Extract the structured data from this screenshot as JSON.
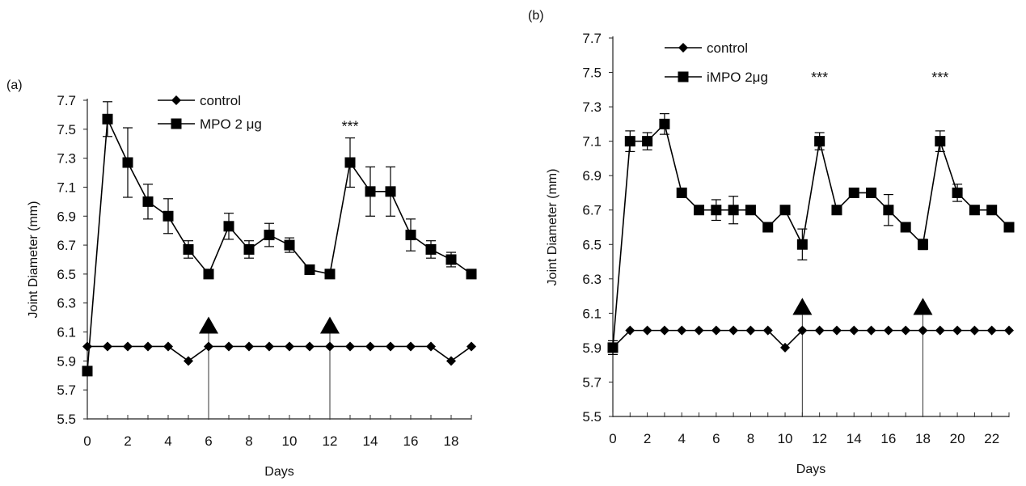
{
  "chart_data": [
    {
      "type": "line",
      "panel_label": "(a)",
      "xlabel": "Days",
      "ylabel": "Joint Diameter (mm)",
      "xlim": [
        0,
        19
      ],
      "ylim": [
        5.5,
        7.7
      ],
      "xticks": [
        0,
        2,
        4,
        6,
        8,
        10,
        12,
        14,
        16,
        18
      ],
      "yticks": [
        5.5,
        5.7,
        5.9,
        6.1,
        6.3,
        6.5,
        6.7,
        6.9,
        7.1,
        7.3,
        7.5,
        7.7
      ],
      "series": [
        {
          "name": "control",
          "marker": "diamond",
          "x": [
            0,
            1,
            2,
            3,
            4,
            5,
            6,
            7,
            8,
            9,
            10,
            11,
            12,
            13,
            14,
            15,
            16,
            17,
            18,
            19
          ],
          "y": [
            6.0,
            6.0,
            6.0,
            6.0,
            6.0,
            5.9,
            6.0,
            6.0,
            6.0,
            6.0,
            6.0,
            6.0,
            6.0,
            6.0,
            6.0,
            6.0,
            6.0,
            6.0,
            5.9,
            6.0
          ]
        },
        {
          "name": "MPO 2 μg",
          "marker": "square",
          "x": [
            0,
            1,
            2,
            3,
            4,
            5,
            6,
            7,
            8,
            9,
            10,
            11,
            12,
            13,
            14,
            15,
            16,
            17,
            18,
            19
          ],
          "y": [
            5.83,
            7.57,
            7.27,
            7.0,
            6.9,
            6.67,
            6.5,
            6.83,
            6.67,
            6.77,
            6.7,
            6.53,
            6.5,
            7.27,
            7.07,
            7.07,
            6.77,
            6.67,
            6.6,
            6.5
          ],
          "err": [
            0,
            0.12,
            0.24,
            0.12,
            0.12,
            0.06,
            0,
            0.09,
            0.06,
            0.08,
            0.05,
            0,
            0,
            0.17,
            0.17,
            0.17,
            0.11,
            0.06,
            0.05,
            0
          ]
        }
      ],
      "annotations": [
        {
          "x": 13,
          "y": 7.53,
          "text": "***"
        }
      ],
      "injection_days": [
        6,
        12
      ],
      "legend": "top-center"
    },
    {
      "type": "line",
      "panel_label": "(b)",
      "xlabel": "Days",
      "ylabel": "Joint Diameter (mm)",
      "xlim": [
        0,
        23
      ],
      "ylim": [
        5.5,
        7.7
      ],
      "xticks": [
        0,
        2,
        4,
        6,
        8,
        10,
        12,
        14,
        16,
        18,
        20,
        22
      ],
      "yticks": [
        5.5,
        5.7,
        5.9,
        6.1,
        6.3,
        6.5,
        6.7,
        6.9,
        7.1,
        7.3,
        7.5,
        7.7
      ],
      "series": [
        {
          "name": "control",
          "marker": "diamond",
          "x": [
            0,
            1,
            2,
            3,
            4,
            5,
            6,
            7,
            8,
            9,
            10,
            11,
            12,
            13,
            14,
            15,
            16,
            17,
            18,
            19,
            20,
            21,
            22,
            23
          ],
          "y": [
            5.9,
            6.0,
            6.0,
            6.0,
            6.0,
            6.0,
            6.0,
            6.0,
            6.0,
            6.0,
            5.9,
            6.0,
            6.0,
            6.0,
            6.0,
            6.0,
            6.0,
            6.0,
            6.0,
            6.0,
            6.0,
            6.0,
            6.0,
            6.0
          ]
        },
        {
          "name": "iMPO 2μg",
          "marker": "square",
          "x": [
            0,
            1,
            2,
            3,
            4,
            5,
            6,
            7,
            8,
            9,
            10,
            11,
            12,
            13,
            14,
            15,
            16,
            17,
            18,
            19,
            20,
            21,
            22,
            23
          ],
          "y": [
            5.9,
            7.1,
            7.1,
            7.2,
            6.8,
            6.7,
            6.7,
            6.7,
            6.7,
            6.6,
            6.7,
            6.5,
            7.1,
            6.7,
            6.8,
            6.8,
            6.7,
            6.6,
            6.5,
            7.1,
            6.8,
            6.7,
            6.7,
            6.6
          ],
          "err": [
            0.04,
            0.06,
            0.05,
            0.06,
            0,
            0,
            0.06,
            0.08,
            0,
            0,
            0,
            0.09,
            0.05,
            0,
            0,
            0,
            0.09,
            0,
            0.03,
            0.06,
            0.05,
            0,
            0,
            0
          ]
        }
      ],
      "annotations": [
        {
          "x": 12,
          "y": 7.48,
          "text": "***"
        },
        {
          "x": 19,
          "y": 7.48,
          "text": "***"
        }
      ],
      "injection_days": [
        11,
        18
      ],
      "legend": "top-left"
    }
  ]
}
